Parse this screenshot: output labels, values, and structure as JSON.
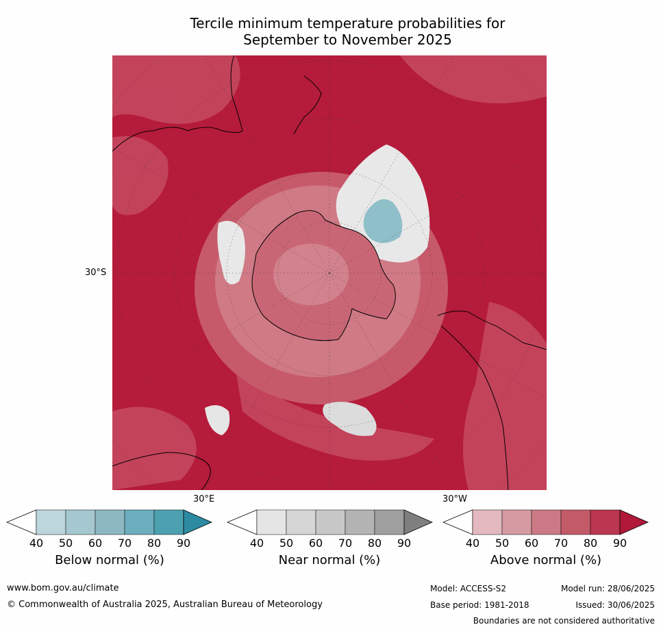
{
  "title": {
    "line1": "Tercile minimum temperature probabilities for",
    "line2": "September to November 2025"
  },
  "map": {
    "lat_label": "30°S",
    "lon_label_east": "30°E",
    "lon_label_west": "30°W",
    "colors": {
      "ocean_dark": "#b51b3a",
      "above_80": "#be3550",
      "above_70": "#c75a6a",
      "above_60": "#cf7a85",
      "above_50": "#d99aa2",
      "near": "#e6e6e6",
      "below": "#8fbfc9",
      "white": "#ffffff"
    }
  },
  "colorbars": [
    {
      "name": "below",
      "label": "Below normal (%)",
      "ticks": [
        "40",
        "50",
        "60",
        "70",
        "80",
        "90"
      ],
      "colors": [
        "#bdd5dc",
        "#a5c7cf",
        "#8cb8c2",
        "#6caebd",
        "#4ca1b1",
        "#2c8ba0"
      ]
    },
    {
      "name": "near",
      "label": "Near normal (%)",
      "ticks": [
        "40",
        "50",
        "60",
        "70",
        "80",
        "90"
      ],
      "colors": [
        "#e5e5e5",
        "#d6d6d6",
        "#c7c7c7",
        "#b3b3b3",
        "#9f9f9f",
        "#7f7f7f"
      ]
    },
    {
      "name": "above",
      "label": "Above normal (%)",
      "ticks": [
        "40",
        "50",
        "60",
        "70",
        "80",
        "90"
      ],
      "colors": [
        "#e3b9bf",
        "#d69aa2",
        "#cb7a85",
        "#c35a68",
        "#bb3650",
        "#b0193a"
      ]
    }
  ],
  "footer": {
    "website": "www.bom.gov.au/climate",
    "copyright": "© Commonwealth of Australia 2025, Australian Bureau of Meteorology",
    "model": "Model: ACCESS-S2",
    "model_run": "Model run: 28/06/2025",
    "base_period": "Base period: 1981-2018",
    "issued": "Issued: 30/06/2025",
    "disclaimer": "Boundaries are not considered authoritative"
  }
}
